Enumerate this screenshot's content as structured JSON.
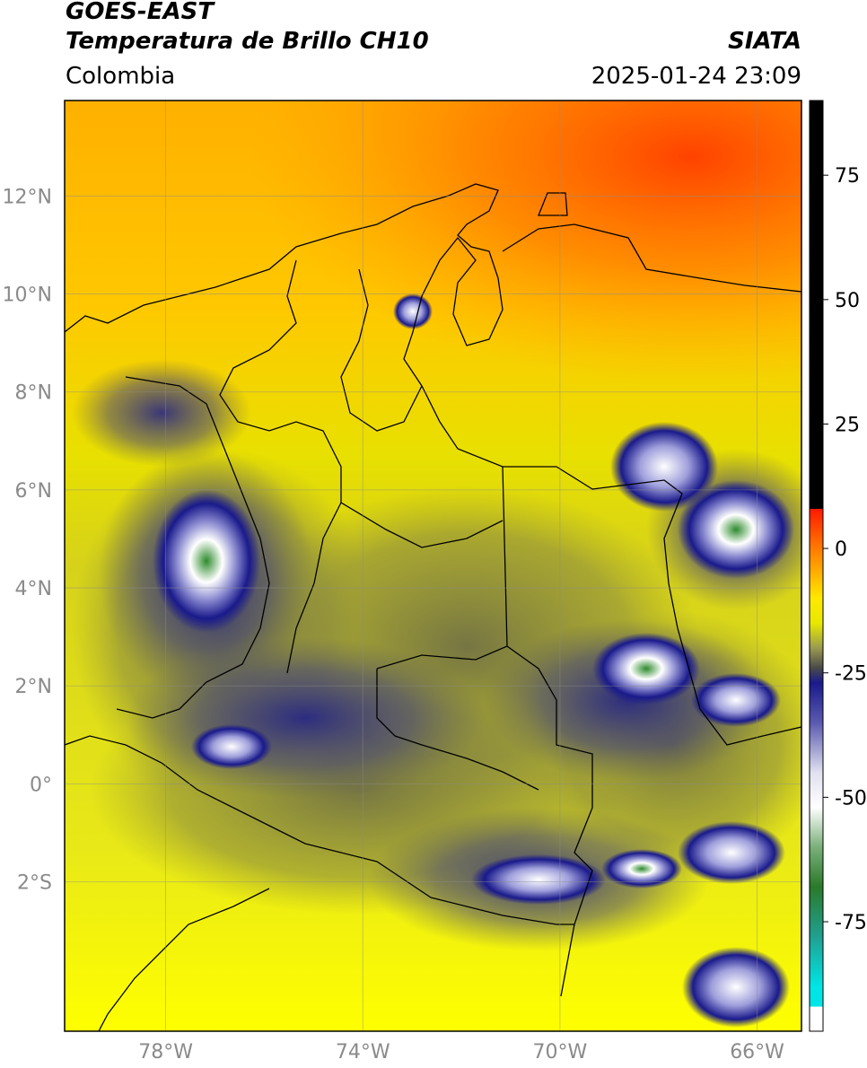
{
  "header": {
    "title_line1": "GOES-EAST",
    "title_line2": "Temperatura de Brillo CH10",
    "source": "SIATA",
    "region": "Colombia",
    "datetime": "2025-01-24 23:09"
  },
  "map": {
    "lon_ticks": [
      {
        "label": "78°W",
        "value": -78
      },
      {
        "label": "74°W",
        "value": -74
      },
      {
        "label": "70°W",
        "value": -70
      },
      {
        "label": "66°W",
        "value": -66
      }
    ],
    "lat_ticks": [
      {
        "label": "12°N",
        "value": 12
      },
      {
        "label": "10°N",
        "value": 10
      },
      {
        "label": "8°N",
        "value": 8
      },
      {
        "label": "6°N",
        "value": 6
      },
      {
        "label": "4°N",
        "value": 4
      },
      {
        "label": "2°N",
        "value": 2
      },
      {
        "label": "0°",
        "value": 0
      },
      {
        "label": "2°S",
        "value": -2
      }
    ],
    "lon_range": [
      -80.05,
      -65.1
    ],
    "lat_range": [
      -5.05,
      13.95
    ],
    "colors": {
      "warm": "#ff3c00",
      "yellow": "#ffff00",
      "olive": "#8a8a40",
      "navy": "#1a1a8c",
      "white": "#ffffff",
      "green": "#2e8b2e"
    }
  },
  "colorbar": {
    "range": [
      -97,
      90
    ],
    "ticks": [
      {
        "label": "75",
        "value": 75
      },
      {
        "label": "50",
        "value": 50
      },
      {
        "label": "25",
        "value": 25
      },
      {
        "label": "0",
        "value": 0
      },
      {
        "label": "-25",
        "value": -25
      },
      {
        "label": "-50",
        "value": -50
      },
      {
        "label": "-75",
        "value": -75
      }
    ],
    "stops": [
      {
        "value": 90,
        "color": "#000000"
      },
      {
        "value": 8,
        "color": "#000000"
      },
      {
        "value": 7.9,
        "color": "#ff1a00"
      },
      {
        "value": 0,
        "color": "#ff7a00"
      },
      {
        "value": -10,
        "color": "#ffe800"
      },
      {
        "value": -15,
        "color": "#e8e800"
      },
      {
        "value": -20,
        "color": "#9a9a50"
      },
      {
        "value": -24,
        "color": "#4a4a4a"
      },
      {
        "value": -27,
        "color": "#1a1a8c"
      },
      {
        "value": -35,
        "color": "#5a5ab0"
      },
      {
        "value": -45,
        "color": "#e0e0f0"
      },
      {
        "value": -52,
        "color": "#ffffff"
      },
      {
        "value": -60,
        "color": "#7ab07a"
      },
      {
        "value": -68,
        "color": "#2a7a2a"
      },
      {
        "value": -78,
        "color": "#20a090"
      },
      {
        "value": -88,
        "color": "#00e5e5"
      },
      {
        "value": -92,
        "color": "#00e5e5"
      },
      {
        "value": -92.1,
        "color": "#ffffff"
      },
      {
        "value": -97,
        "color": "#ffffff"
      }
    ]
  }
}
